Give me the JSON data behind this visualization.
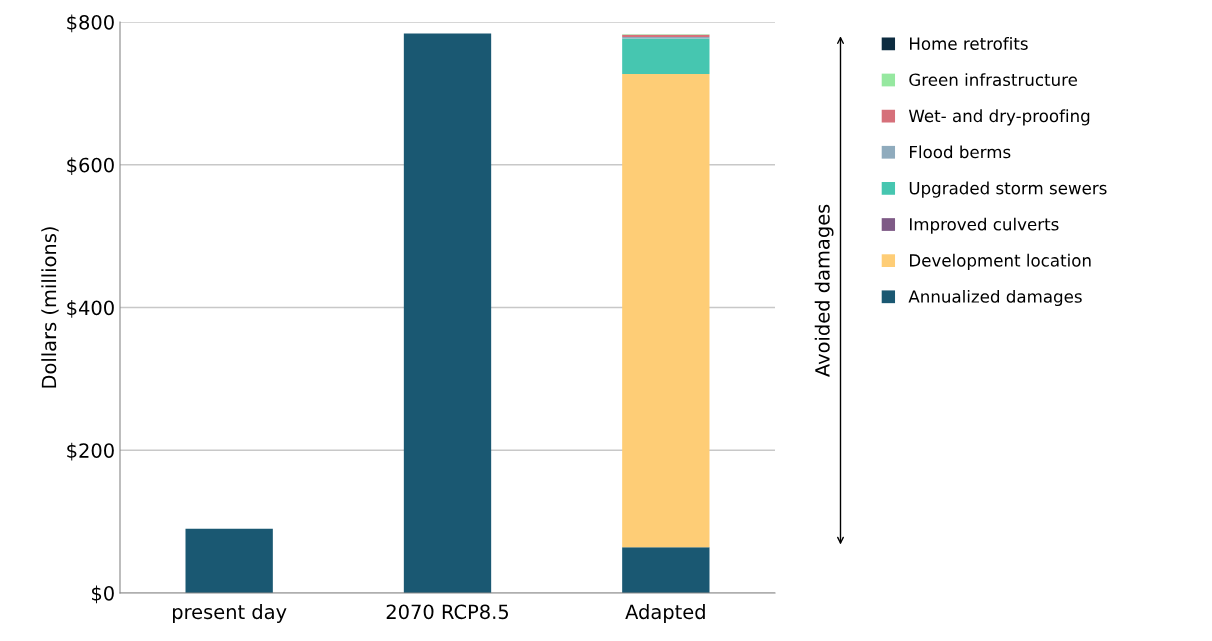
{
  "chart_data": {
    "type": "bar",
    "stacked": true,
    "ylabel": "Dollars (millions)",
    "categories": [
      "present day",
      "2070 RCP8.5",
      "Adapted"
    ],
    "series": [
      {
        "name": "Annualized damages",
        "color": "#1a5872",
        "values": [
          90,
          784,
          64
        ]
      },
      {
        "name": "Development location",
        "color": "#fecd76",
        "values": [
          null,
          null,
          663
        ]
      },
      {
        "name": "Improved culverts",
        "color": "#7e5a86",
        "values": [
          null,
          null,
          0
        ]
      },
      {
        "name": "Upgraded storm sewers",
        "color": "#46c6b0",
        "values": [
          null,
          null,
          50
        ]
      },
      {
        "name": "Flood berms",
        "color": "#8fabbd",
        "values": [
          null,
          null,
          2
        ]
      },
      {
        "name": "Wet- and dry-proofing",
        "color": "#d6707a",
        "values": [
          null,
          null,
          3
        ]
      },
      {
        "name": "Green infrastructure",
        "color": "#96e8a0",
        "values": [
          null,
          null,
          1
        ]
      },
      {
        "name": "Home retrofits",
        "color": "#0d2c40",
        "values": [
          null,
          null,
          0
        ]
      }
    ],
    "ylim": [
      0,
      800
    ],
    "yticks": [
      {
        "value": 0,
        "label": "$0"
      },
      {
        "value": 200,
        "label": "$200"
      },
      {
        "value": 400,
        "label": "$400"
      },
      {
        "value": 600,
        "label": "$600"
      },
      {
        "value": 800,
        "label": "$800"
      }
    ],
    "grid": "y",
    "legend": "right",
    "annotations": [
      "Avoided damages"
    ]
  }
}
